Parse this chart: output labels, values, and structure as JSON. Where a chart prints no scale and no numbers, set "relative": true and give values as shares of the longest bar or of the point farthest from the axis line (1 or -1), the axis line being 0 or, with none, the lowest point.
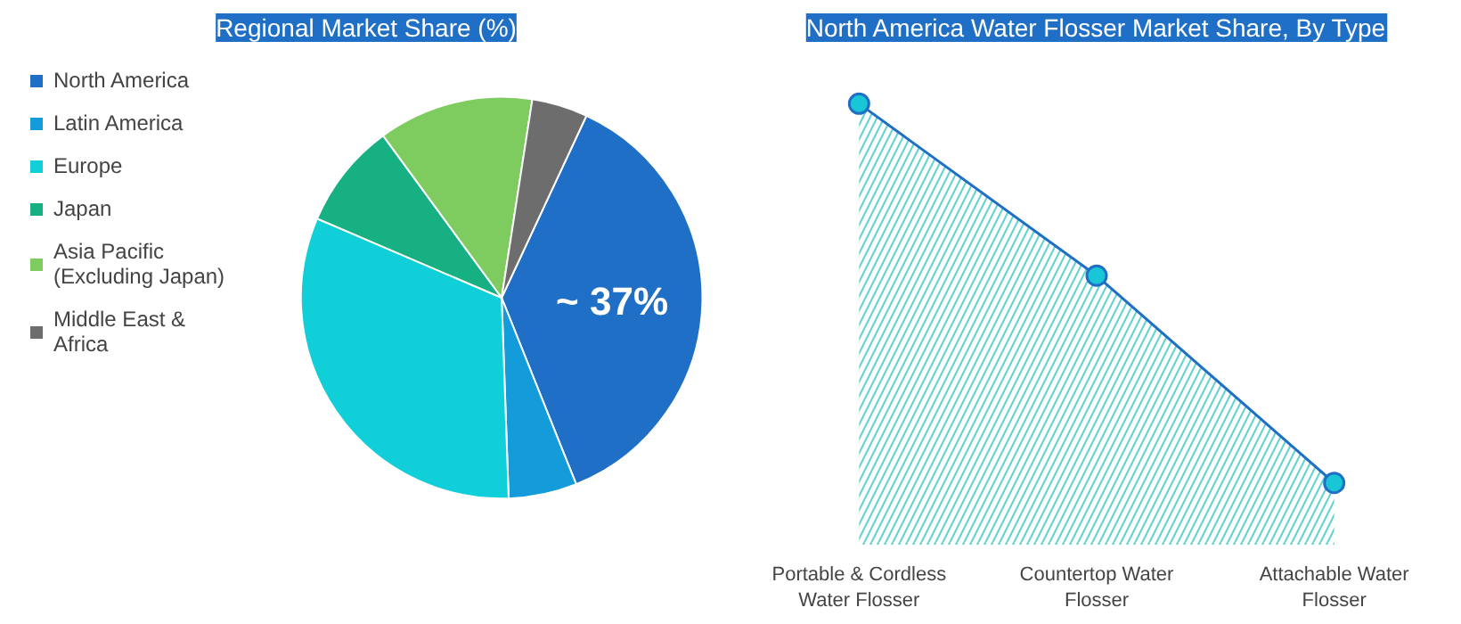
{
  "chart_data": [
    {
      "type": "pie",
      "title": "Regional Market Share (%)",
      "categories": [
        "North America",
        "Latin America",
        "Europe",
        "Japan",
        "Asia Pacific (Excluding Japan)",
        "Middle East & Africa"
      ],
      "values": [
        37,
        5.5,
        32,
        8.5,
        12.5,
        4.5
      ],
      "colors": [
        "#1f6fc6",
        "#139cd9",
        "#10cfd8",
        "#16b083",
        "#7ecb5f",
        "#6d6d6d"
      ],
      "value_labels": [
        "~ 37%",
        null,
        null,
        null,
        null,
        null
      ],
      "legend": "left"
    },
    {
      "type": "area",
      "title": "North America Water Flosser Market Share, By Type",
      "categories": [
        "Portable & Cordless Water Flosser",
        "Countertop Water Flosser",
        "Attachable Water Flosser"
      ],
      "series": [
        {
          "color": "#1f6fc6",
          "values": [
            1,
            0.61,
            0.14
          ]
        }
      ],
      "relative": true,
      "marker": "circle",
      "grid": false
    }
  ]
}
